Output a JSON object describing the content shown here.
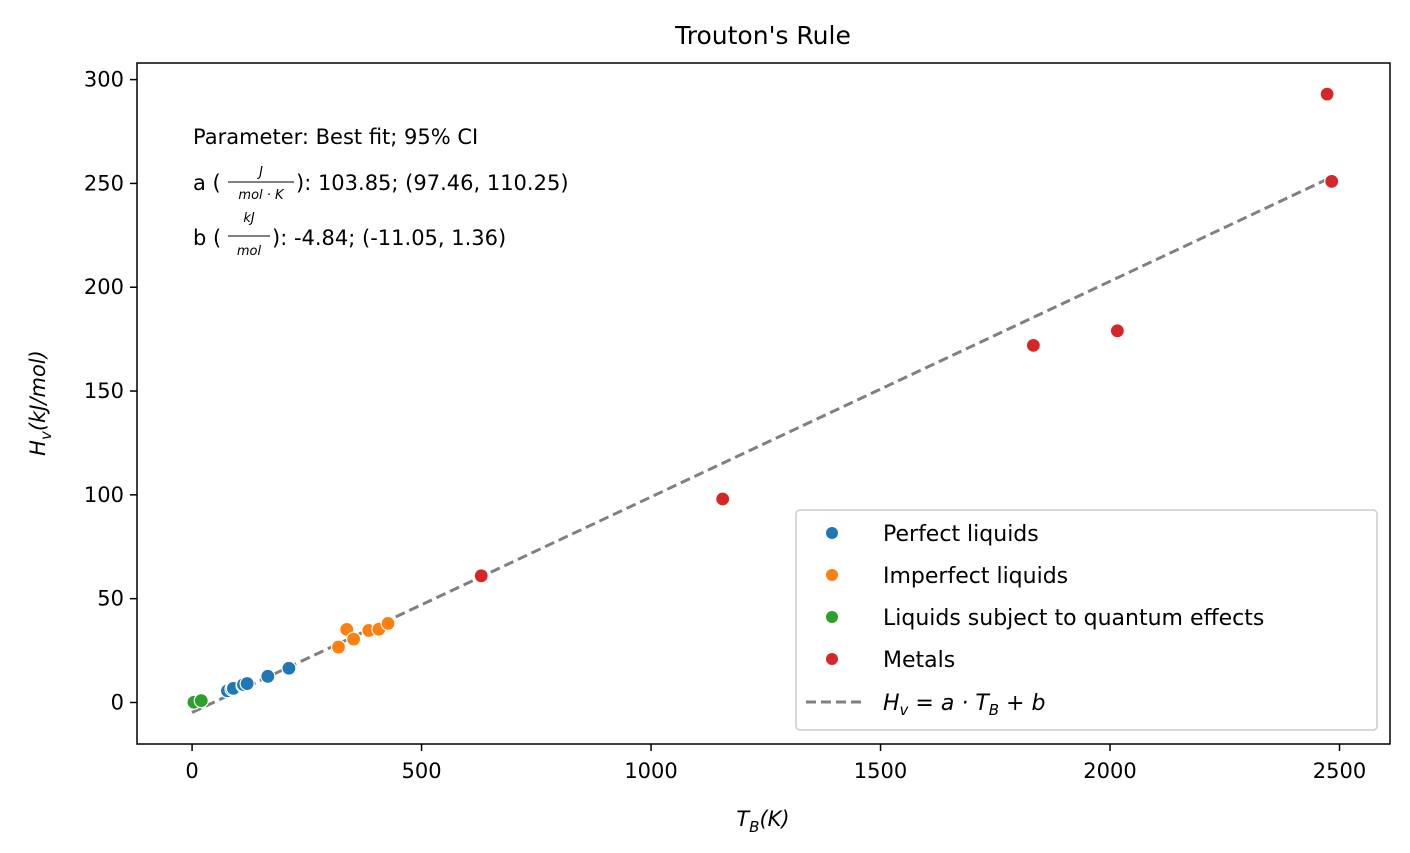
{
  "chart_data": {
    "type": "scatter",
    "title": "Trouton's Rule",
    "xlabel": {
      "main": "T",
      "sub": "B",
      "rest": "(K)"
    },
    "ylabel": {
      "main": "H",
      "sub": "v",
      "rest": "(kJ/mol)"
    },
    "xlim": [
      -120,
      2610
    ],
    "ylim": [
      -20,
      308
    ],
    "x_ticks": [
      0,
      500,
      1000,
      1500,
      2000,
      2500
    ],
    "y_ticks": [
      0,
      50,
      100,
      150,
      200,
      250,
      300
    ],
    "grid": false,
    "legend_position": "lower-right",
    "series": [
      {
        "name": "Perfect liquids",
        "color": "#1f77b4",
        "points": [
          [
            77,
            5.6
          ],
          [
            87,
            6.4
          ],
          [
            90,
            6.8
          ],
          [
            111,
            8.2
          ],
          [
            112,
            8.6
          ],
          [
            120,
            9.1
          ],
          [
            165,
            12.6
          ],
          [
            211,
            16.5
          ]
        ]
      },
      {
        "name": "Imperfect liquids",
        "color": "#ff7f0e",
        "points": [
          [
            319,
            26.7
          ],
          [
            337,
            35.2
          ],
          [
            352,
            30.5
          ],
          [
            385,
            34.7
          ],
          [
            407,
            35.3
          ],
          [
            427,
            38.1
          ]
        ]
      },
      {
        "name": "Liquids subject to quantum effects",
        "color": "#2ca02c",
        "points": [
          [
            4,
            0.1
          ],
          [
            20,
            0.9
          ]
        ]
      },
      {
        "name": "Metals",
        "color": "#d62728",
        "points": [
          [
            630,
            61
          ],
          [
            1156,
            98
          ],
          [
            1833,
            172
          ],
          [
            2016,
            179
          ],
          [
            2473,
            293
          ],
          [
            2483,
            251
          ]
        ]
      }
    ],
    "fit_line": {
      "legend": {
        "lhs": "H",
        "lhs_sub": "v",
        "eq": " = a · T",
        "eq_sub": "B",
        "tail": " + b"
      },
      "color": "#808080",
      "style": "dashed",
      "x_range": [
        0,
        2483
      ],
      "a": 0.10385,
      "b": -4.84
    },
    "annotations": {
      "header": "Parameter: Best fit; 95% CI",
      "a_prefix": "a (",
      "a_num": "J",
      "a_den": "mol · K",
      "a_suffix": "): 103.85; (97.46, 110.25)",
      "b_prefix": "b (",
      "b_num": "kJ",
      "b_den": "mol",
      "b_suffix": "): -4.84; (-11.05, 1.36)"
    }
  }
}
